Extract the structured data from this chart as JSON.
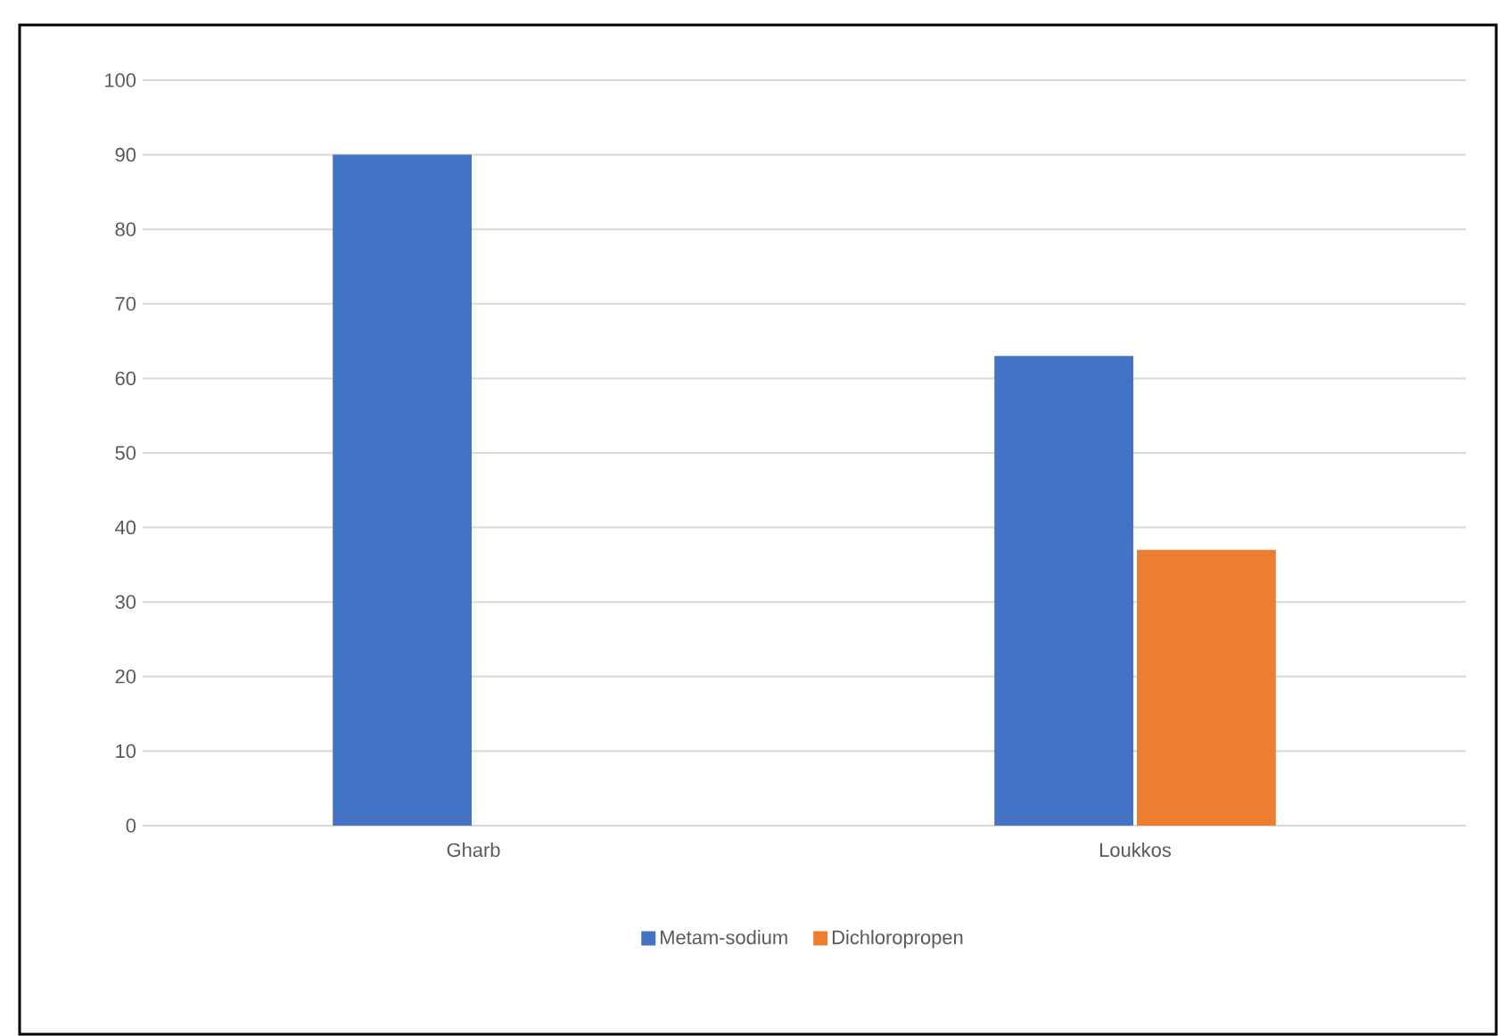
{
  "chart_data": {
    "type": "bar",
    "categories": [
      "Gharb",
      "Loukkos"
    ],
    "series": [
      {
        "name": "Metam-sodium",
        "color": "#4472c4",
        "values": [
          90,
          63
        ]
      },
      {
        "name": "Dichloropropen",
        "color": "#ed7d31",
        "values": [
          0,
          37
        ]
      }
    ],
    "ylim": [
      0,
      100
    ],
    "yticks": [
      0,
      10,
      20,
      30,
      40,
      50,
      60,
      70,
      80,
      90,
      100
    ],
    "grid": "y",
    "legend": "bottom"
  }
}
